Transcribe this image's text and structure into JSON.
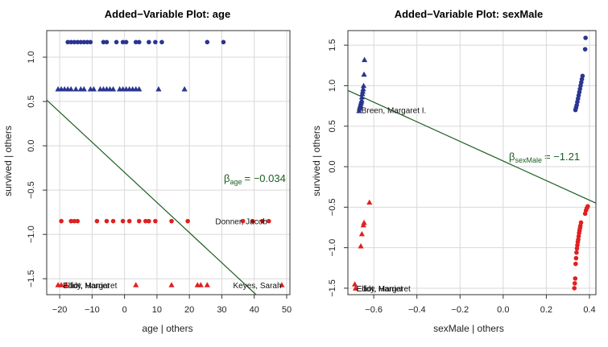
{
  "figure": {
    "panels": [
      {
        "title": "Added−Variable Plot: age",
        "xlabel": "age | others",
        "ylabel": "survived | others",
        "beta_symbol": "β",
        "beta_sub": "age",
        "beta_value": "= −0.034"
      },
      {
        "title": "Added−Variable Plot: sexMale",
        "xlabel": "sexMale | others",
        "ylabel": "survived | others",
        "beta_symbol": "β",
        "beta_sub": "sexMale",
        "beta_value": "= −1.21"
      }
    ]
  },
  "colors": {
    "survived": "#2a3590",
    "died": "#e02020",
    "line": "#1b5e20",
    "grid": "#d8d8d8"
  },
  "chart_data": [
    {
      "type": "scatter",
      "title": "Added−Variable Plot: age",
      "xlabel": "age | others",
      "ylabel": "survived | others",
      "xlim": [
        -24,
        51
      ],
      "ylim": [
        -1.68,
        1.3
      ],
      "xticks": [
        -20,
        -10,
        0,
        10,
        20,
        30,
        40,
        50
      ],
      "yticks": [
        -1.5,
        -1.0,
        -0.5,
        0.0,
        0.5,
        1.0
      ],
      "xtick_labels": [
        "−20",
        "−10",
        "0",
        "10",
        "20",
        "30",
        "40",
        "50"
      ],
      "ytick_labels": [
        "−1.5",
        "−1.0",
        "−0.5",
        "0.0",
        "0.5",
        "1.0"
      ],
      "grid": true,
      "regression_line": {
        "slope": -0.034,
        "intercept": -0.3
      },
      "series": [
        {
          "marker": "circle",
          "color": "#2a3590",
          "y": 1.17,
          "x": [
            -17.5,
            -16.5,
            -15.5,
            -14.5,
            -13.5,
            -12.5,
            -11.5,
            -10.5,
            -6.5,
            -5.5,
            -2.5,
            -0.5,
            0.5,
            3.5,
            4.5,
            7.5,
            9.5,
            11.5,
            25.5,
            30.5
          ]
        },
        {
          "marker": "triangle",
          "color": "#2a3590",
          "y": 0.64,
          "x": [
            -20.5,
            -19.5,
            -18.5,
            -17.5,
            -16.5,
            -15,
            -13.5,
            -12.5,
            -10.5,
            -9.5,
            -7.5,
            -6.5,
            -5.5,
            -4.5,
            -3.5,
            -1.5,
            -0.5,
            0.5,
            1.5,
            2.5,
            3.5,
            4.5,
            10.5,
            18.5
          ]
        },
        {
          "marker": "circle",
          "color": "#e02020",
          "y": -0.85,
          "x": [
            -19.5,
            -16.5,
            -15.5,
            -14.5,
            -8.5,
            -5.5,
            -3.5,
            -0.5,
            1.5,
            4.5,
            6.5,
            7.5,
            9.5,
            14.5,
            19.5,
            36.5,
            39.5,
            42.5,
            44.5
          ]
        },
        {
          "marker": "triangle",
          "color": "#e02020",
          "y": -1.57,
          "x": [
            -20.5,
            -19.5,
            -18,
            3.5,
            14.5,
            22.5,
            23.5,
            25.5,
            48.5
          ]
        }
      ],
      "annotations": [
        {
          "text": "Donner, Jacob",
          "x": 27.5,
          "y": -0.85
        },
        {
          "text": "Elliot, Margaret",
          "x": -19.5,
          "y": -1.57
        },
        {
          "text": "Eddy, Harriet",
          "x": -19.5,
          "y": -1.57
        },
        {
          "text": "Keyes, Sarah",
          "x": 33,
          "y": -1.57
        }
      ]
    },
    {
      "type": "scatter",
      "title": "Added−Variable Plot: sexMale",
      "xlabel": "sexMale | others",
      "ylabel": "survived | others",
      "xlim": [
        -0.72,
        0.43
      ],
      "ylim": [
        -1.58,
        1.68
      ],
      "xticks": [
        -0.6,
        -0.4,
        -0.2,
        0.0,
        0.2,
        0.4
      ],
      "yticks": [
        -1.5,
        -1.0,
        -0.5,
        0.0,
        0.5,
        1.0,
        1.5
      ],
      "xtick_labels": [
        "−0.6",
        "−0.4",
        "−0.2",
        "0.0",
        "0.2",
        "0.4"
      ],
      "ytick_labels": [
        "−1.5",
        "−1.0",
        "−0.5",
        "0.0",
        "0.5",
        "1.0",
        "1.5"
      ],
      "grid": true,
      "regression_line": {
        "slope": -1.21,
        "intercept": 0.07
      },
      "series": [
        {
          "marker": "triangle",
          "color": "#2a3590",
          "points": [
            [
              -0.668,
              0.69
            ],
            [
              -0.666,
              0.72
            ],
            [
              -0.664,
              0.74
            ],
            [
              -0.662,
              0.76
            ],
            [
              -0.66,
              0.78
            ],
            [
              -0.658,
              0.8
            ],
            [
              -0.656,
              0.82
            ],
            [
              -0.655,
              0.86
            ],
            [
              -0.653,
              0.9
            ],
            [
              -0.651,
              0.93
            ],
            [
              -0.649,
              0.96
            ],
            [
              -0.647,
              1.0
            ],
            [
              -0.645,
              1.14
            ],
            [
              -0.643,
              1.32
            ]
          ]
        },
        {
          "marker": "circle",
          "color": "#2a3590",
          "points": [
            [
              0.335,
              0.7
            ],
            [
              0.338,
              0.73
            ],
            [
              0.341,
              0.76
            ],
            [
              0.344,
              0.8
            ],
            [
              0.347,
              0.84
            ],
            [
              0.35,
              0.88
            ],
            [
              0.353,
              0.92
            ],
            [
              0.356,
              0.96
            ],
            [
              0.359,
              1.0
            ],
            [
              0.362,
              1.04
            ],
            [
              0.365,
              1.08
            ],
            [
              0.368,
              1.12
            ],
            [
              0.38,
              1.45
            ],
            [
              0.382,
              1.59
            ]
          ]
        },
        {
          "marker": "triangle",
          "color": "#e02020",
          "points": [
            [
              -0.688,
              -1.45
            ],
            [
              -0.684,
              -1.5
            ],
            [
              -0.66,
              -0.98
            ],
            [
              -0.655,
              -0.83
            ],
            [
              -0.648,
              -0.72
            ],
            [
              -0.645,
              -0.69
            ],
            [
              -0.62,
              -0.44
            ]
          ]
        },
        {
          "marker": "circle",
          "color": "#e02020",
          "points": [
            [
              0.33,
              -1.5
            ],
            [
              0.332,
              -1.44
            ],
            [
              0.334,
              -1.38
            ],
            [
              0.336,
              -1.2
            ],
            [
              0.338,
              -1.13
            ],
            [
              0.34,
              -1.06
            ],
            [
              0.342,
              -1.01
            ],
            [
              0.344,
              -0.97
            ],
            [
              0.346,
              -0.93
            ],
            [
              0.348,
              -0.9
            ],
            [
              0.35,
              -0.86
            ],
            [
              0.352,
              -0.82
            ],
            [
              0.354,
              -0.79
            ],
            [
              0.356,
              -0.76
            ],
            [
              0.358,
              -0.73
            ],
            [
              0.361,
              -0.69
            ],
            [
              0.38,
              -0.58
            ],
            [
              0.384,
              -0.54
            ],
            [
              0.388,
              -0.51
            ],
            [
              0.392,
              -0.49
            ]
          ]
        }
      ],
      "annotations": [
        {
          "text": "Breen, Margaret I.",
          "x": -0.665,
          "y": 0.7
        },
        {
          "text": "Eddy, Harriet",
          "x": -0.688,
          "y": -1.5
        },
        {
          "text": "Elliot, Margaret",
          "x": -0.688,
          "y": -1.5
        }
      ]
    }
  ]
}
